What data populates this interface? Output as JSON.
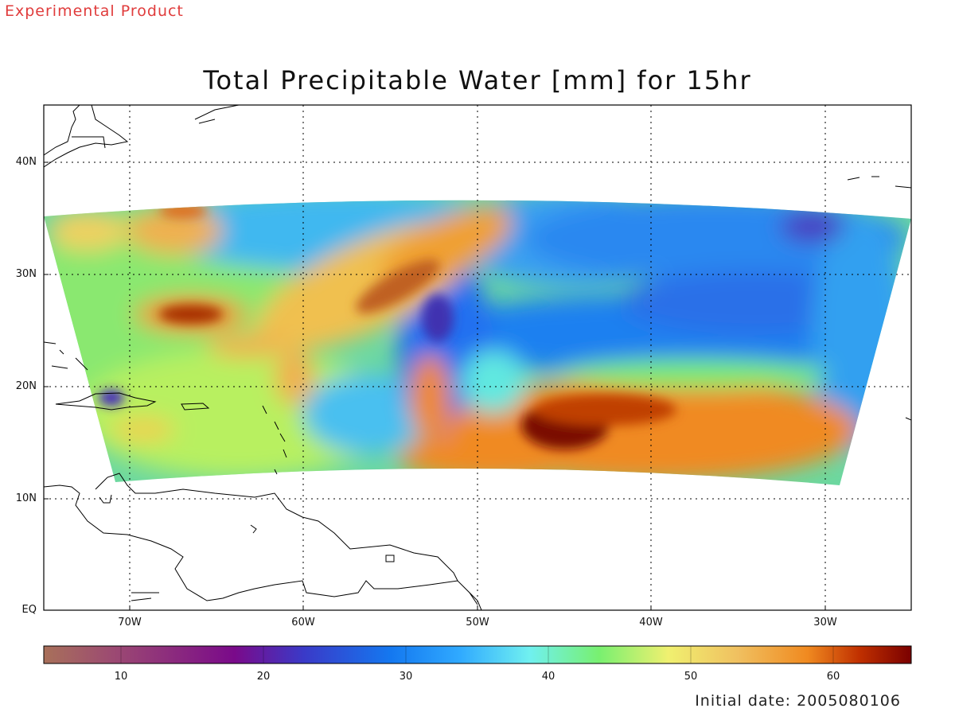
{
  "header": {
    "badge": "Experimental Product",
    "title": "Total Precipitable Water [mm] for 15hr"
  },
  "axes": {
    "lat_labels": [
      "40N",
      "30N",
      "20N",
      "10N",
      "EQ"
    ],
    "lon_labels": [
      "70W",
      "60W",
      "50W",
      "40W",
      "30W"
    ]
  },
  "colorbar": {
    "labels": [
      "10",
      "20",
      "30",
      "40",
      "50",
      "60"
    ],
    "colors": [
      "#a8705a",
      "#9c4a72",
      "#7a0a8a",
      "#3a3ac8",
      "#1478f0",
      "#30aaff",
      "#70f0f0",
      "#78f070",
      "#f0f070",
      "#f0c060",
      "#f08a20",
      "#e06000",
      "#b02000",
      "#7a0000"
    ]
  },
  "footer": {
    "initial_date": "Initial date: 2005080106"
  }
}
